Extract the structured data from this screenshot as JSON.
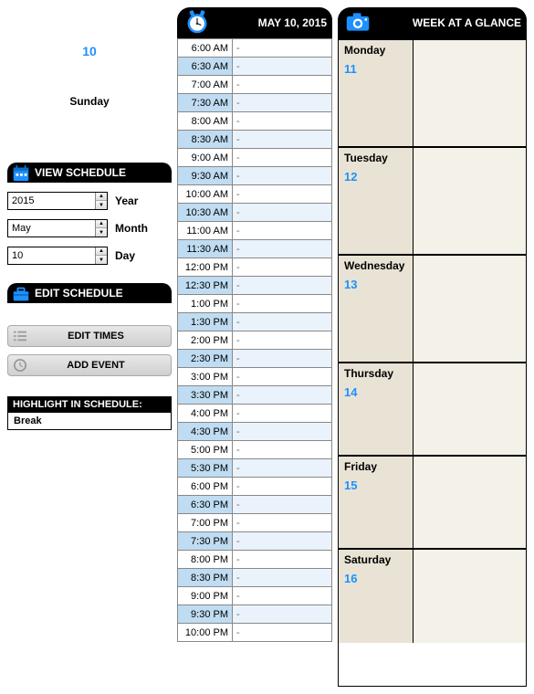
{
  "accent": "#1e90ff",
  "date_header": "MAY 10, 2015",
  "selected": {
    "day_num": "10",
    "day_name": "Sunday"
  },
  "view_schedule": {
    "title": "VIEW SCHEDULE",
    "year": {
      "value": "2015",
      "label": "Year"
    },
    "month": {
      "value": "May",
      "label": "Month"
    },
    "day": {
      "value": "10",
      "label": "Day"
    }
  },
  "edit_schedule": {
    "title": "EDIT SCHEDULE",
    "edit_times": "EDIT TIMES",
    "add_event": "ADD EVENT"
  },
  "highlight": {
    "title": "HIGHLIGHT IN SCHEDULE:",
    "value": "Break"
  },
  "times": [
    {
      "t": "6:00 AM",
      "alt": false
    },
    {
      "t": "6:30 AM",
      "alt": true
    },
    {
      "t": "7:00 AM",
      "alt": false
    },
    {
      "t": "7:30 AM",
      "alt": true
    },
    {
      "t": "8:00 AM",
      "alt": false
    },
    {
      "t": "8:30 AM",
      "alt": true
    },
    {
      "t": "9:00 AM",
      "alt": false
    },
    {
      "t": "9:30 AM",
      "alt": true
    },
    {
      "t": "10:00 AM",
      "alt": false
    },
    {
      "t": "10:30 AM",
      "alt": true
    },
    {
      "t": "11:00 AM",
      "alt": false
    },
    {
      "t": "11:30 AM",
      "alt": true
    },
    {
      "t": "12:00 PM",
      "alt": false
    },
    {
      "t": "12:30 PM",
      "alt": true
    },
    {
      "t": "1:00 PM",
      "alt": false
    },
    {
      "t": "1:30 PM",
      "alt": true
    },
    {
      "t": "2:00 PM",
      "alt": false
    },
    {
      "t": "2:30 PM",
      "alt": true
    },
    {
      "t": "3:00 PM",
      "alt": false
    },
    {
      "t": "3:30 PM",
      "alt": true
    },
    {
      "t": "4:00 PM",
      "alt": false
    },
    {
      "t": "4:30 PM",
      "alt": true
    },
    {
      "t": "5:00 PM",
      "alt": false
    },
    {
      "t": "5:30 PM",
      "alt": true
    },
    {
      "t": "6:00 PM",
      "alt": false
    },
    {
      "t": "6:30 PM",
      "alt": true
    },
    {
      "t": "7:00 PM",
      "alt": false
    },
    {
      "t": "7:30 PM",
      "alt": true
    },
    {
      "t": "8:00 PM",
      "alt": false
    },
    {
      "t": "8:30 PM",
      "alt": true
    },
    {
      "t": "9:00 PM",
      "alt": false
    },
    {
      "t": "9:30 PM",
      "alt": true
    },
    {
      "t": "10:00 PM",
      "alt": false
    }
  ],
  "week": {
    "title": "WEEK AT A GLANCE",
    "days": [
      {
        "name": "Monday",
        "num": "11"
      },
      {
        "name": "Tuesday",
        "num": "12"
      },
      {
        "name": "Wednesday",
        "num": "13"
      },
      {
        "name": "Thursday",
        "num": "14"
      },
      {
        "name": "Friday",
        "num": "15"
      },
      {
        "name": "Saturday",
        "num": "16"
      }
    ]
  },
  "event_placeholder": "-"
}
